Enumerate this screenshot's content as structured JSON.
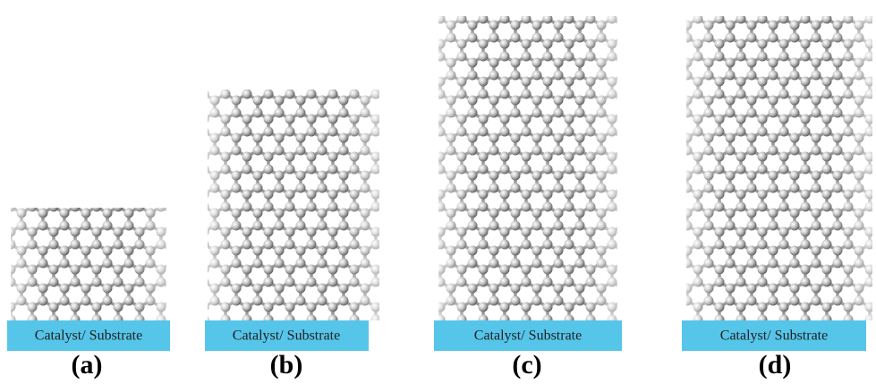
{
  "panels": [
    {
      "substrate": "Catalyst/ Substrate",
      "label": "(a)"
    },
    {
      "substrate": "Catalyst/ Substrate",
      "label": "(b)"
    },
    {
      "substrate": "Catalyst/ Substrate",
      "label": "(c)"
    },
    {
      "substrate": "Catalyst/ Substrate",
      "label": "(d)"
    }
  ]
}
